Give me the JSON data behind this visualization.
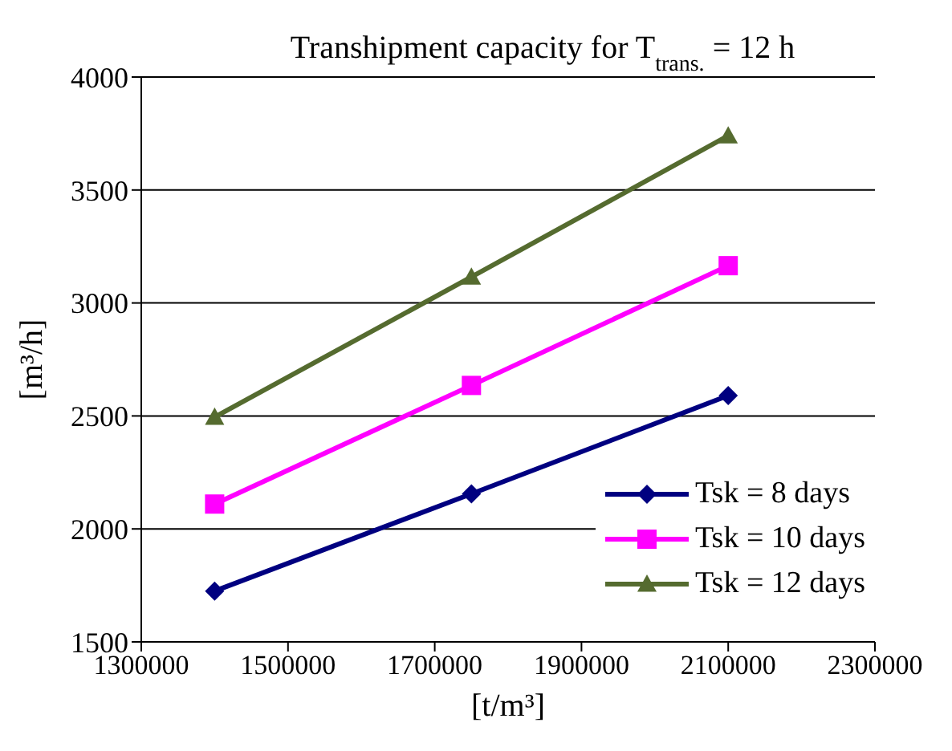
{
  "chart_data": {
    "type": "line",
    "title": "Transhipment capacity for T$_{trans.}$ = 12 h",
    "xlabel": "[t/m³]",
    "ylabel": "[m³/h]",
    "x": [
      1400000,
      1750000,
      2100000
    ],
    "series": [
      {
        "name": "Tsk = 8 days",
        "color": "#000080",
        "marker": "diamond",
        "values": [
          1725,
          2155,
          2590
        ]
      },
      {
        "name": "Tsk = 10 days",
        "color": "#ff00ff",
        "marker": "square",
        "values": [
          2110,
          2635,
          3165
        ]
      },
      {
        "name": "Tsk = 12 days",
        "color": "#556b2f",
        "marker": "triangle",
        "values": [
          2495,
          3115,
          3740
        ]
      }
    ],
    "xlim": [
      1300000,
      2300000
    ],
    "xticks": [
      1300000,
      1500000,
      1700000,
      1900000,
      2100000,
      2300000
    ],
    "ylim": [
      1500,
      4000
    ],
    "yticks": [
      1500,
      2000,
      2500,
      3000,
      3500,
      4000
    ],
    "grid": "y",
    "legend": "bottom right",
    "line_style": "solid"
  }
}
